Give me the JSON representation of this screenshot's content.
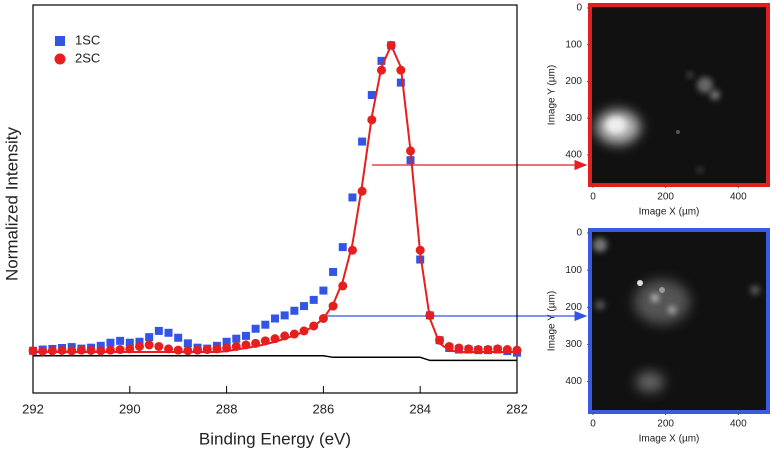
{
  "chart_data": [
    {
      "type": "scatter",
      "xlabel": "Binding Energy (eV)",
      "ylabel": "Normalized Intensity",
      "xlim": [
        292,
        282
      ],
      "ylim": [
        -0.12,
        1.13
      ],
      "xticks": [
        292,
        290,
        288,
        286,
        284,
        282
      ],
      "legend": "upper left",
      "x": [
        292,
        291.8,
        291.6,
        291.4,
        291.2,
        291,
        290.8,
        290.6,
        290.4,
        290.2,
        290,
        289.8,
        289.6,
        289.4,
        289.2,
        289,
        288.8,
        288.6,
        288.4,
        288.2,
        288,
        287.8,
        287.6,
        287.4,
        287.2,
        287,
        286.8,
        286.6,
        286.4,
        286.2,
        286,
        285.8,
        285.6,
        285.4,
        285.2,
        285,
        284.8,
        284.6,
        284.4,
        284.2,
        284,
        283.8,
        283.6,
        283.4,
        283.2,
        283,
        282.8,
        282.6,
        282.4,
        282.2,
        282
      ],
      "series": [
        {
          "name": "1SC",
          "color": "#3355e6",
          "marker": "square",
          "values": [
            0.016,
            0.02,
            0.022,
            0.025,
            0.028,
            0.023,
            0.026,
            0.032,
            0.042,
            0.048,
            0.042,
            0.045,
            0.06,
            0.08,
            0.074,
            0.058,
            0.04,
            0.026,
            0.023,
            0.032,
            0.045,
            0.055,
            0.064,
            0.087,
            0.1,
            0.12,
            0.13,
            0.145,
            0.16,
            0.18,
            0.21,
            0.27,
            0.35,
            0.51,
            0.69,
            0.84,
            0.95,
            1.0,
            0.88,
            0.63,
            0.31,
            0.13,
            0.05,
            0.025,
            0.02,
            0.02,
            0.018,
            0.018,
            0.02,
            0.015,
            0.01
          ]
        },
        {
          "name": "2SC",
          "color": "#e81e1e",
          "marker": "circle",
          "values": [
            0.016,
            0.015,
            0.016,
            0.017,
            0.016,
            0.018,
            0.017,
            0.016,
            0.018,
            0.02,
            0.022,
            0.03,
            0.035,
            0.03,
            0.022,
            0.018,
            0.016,
            0.018,
            0.02,
            0.022,
            0.025,
            0.03,
            0.035,
            0.04,
            0.048,
            0.055,
            0.064,
            0.07,
            0.08,
            0.096,
            0.12,
            0.16,
            0.225,
            0.34,
            0.53,
            0.76,
            0.92,
            1.0,
            0.92,
            0.66,
            0.34,
            0.13,
            0.05,
            0.03,
            0.025,
            0.022,
            0.02,
            0.02,
            0.022,
            0.02,
            0.018
          ]
        }
      ],
      "fit": {
        "color": "#e81e1e",
        "values": [
          0.012,
          0.012,
          0.012,
          0.012,
          0.012,
          0.012,
          0.012,
          0.012,
          0.012,
          0.012,
          0.012,
          0.012,
          0.012,
          0.012,
          0.012,
          0.012,
          0.012,
          0.012,
          0.012,
          0.012,
          0.015,
          0.02,
          0.025,
          0.03,
          0.037,
          0.045,
          0.055,
          0.065,
          0.078,
          0.095,
          0.12,
          0.165,
          0.24,
          0.36,
          0.55,
          0.77,
          0.93,
          1.0,
          0.93,
          0.66,
          0.33,
          0.12,
          0.04,
          0.018,
          0.012,
          0.012,
          0.012,
          0.012,
          0.012,
          0.012,
          0.012
        ]
      },
      "baseline": {
        "color": "#000000",
        "values": [
          0,
          0,
          0,
          0,
          0,
          0,
          0,
          0,
          0,
          0,
          0,
          0,
          0,
          0,
          0,
          0,
          0,
          0,
          0,
          0,
          0,
          0,
          0,
          0,
          0,
          0,
          0,
          0,
          0,
          0,
          0,
          -0.005,
          -0.005,
          -0.005,
          -0.005,
          -0.005,
          -0.005,
          -0.005,
          -0.005,
          -0.005,
          -0.005,
          -0.015,
          -0.015,
          -0.015,
          -0.015,
          -0.015,
          -0.015,
          -0.015,
          -0.015,
          -0.015,
          -0.015
        ]
      }
    },
    {
      "type": "image",
      "border": "#e02020",
      "xlabel": "Image X (µm)",
      "ylabel": "Image Y (µm)",
      "xlim": [
        0,
        490
      ],
      "ylim": [
        0,
        490
      ],
      "xticks": [
        0,
        200,
        400
      ],
      "yticks": [
        0,
        100,
        200,
        300,
        400
      ]
    },
    {
      "type": "image",
      "border": "#3a5ae0",
      "xlabel": "Image X (µm)",
      "ylabel": "Image Y (µm)",
      "xlim": [
        0,
        490
      ],
      "ylim": [
        0,
        490
      ],
      "xticks": [
        0,
        200,
        400
      ],
      "yticks": [
        0,
        100,
        200,
        300,
        400
      ]
    }
  ]
}
